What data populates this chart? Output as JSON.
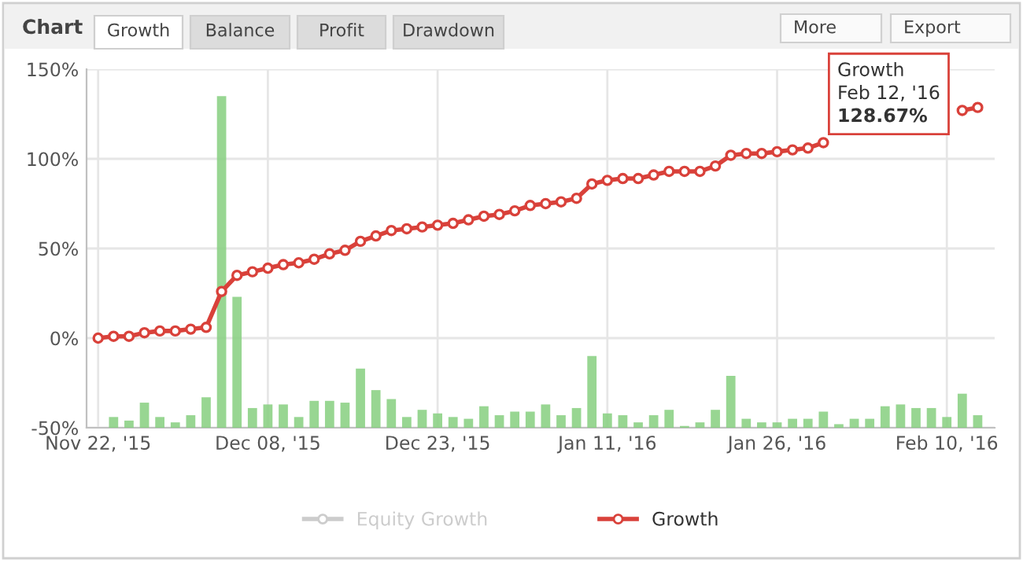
{
  "chart_data": {
    "type": "line",
    "title": "Chart",
    "categories": [
      "Nov 22, '15",
      null,
      null,
      null,
      null,
      null,
      null,
      null,
      null,
      null,
      null,
      "Dec 08, '15",
      null,
      null,
      null,
      null,
      null,
      null,
      null,
      null,
      null,
      null,
      "Dec 23, '15",
      null,
      null,
      null,
      null,
      null,
      null,
      null,
      null,
      null,
      null,
      "Jan 11, '16",
      null,
      null,
      null,
      null,
      null,
      null,
      null,
      null,
      null,
      null,
      "Jan 26, '16",
      null,
      null,
      null,
      null,
      null,
      null,
      null,
      null,
      null,
      null,
      "Feb 10, '16",
      null,
      null
    ],
    "series": [
      {
        "type": "bar",
        "color": "#86cf7f",
        "base": [
          null,
          -50,
          -50,
          -50,
          -50,
          -50,
          -50,
          -50,
          -50,
          -50,
          -50,
          -50,
          -50,
          -50,
          -50,
          -50,
          -50,
          -50,
          -50,
          -50,
          -50,
          -50,
          -50,
          -50,
          -50,
          -50,
          -50,
          -50,
          -50,
          -50,
          -50,
          -50,
          -50,
          -50,
          -50,
          -50,
          -50,
          -50,
          -50,
          -50,
          -50,
          -50,
          -50,
          -50,
          -50,
          -50,
          -50,
          -50,
          -50,
          -50,
          -50,
          -50,
          -50,
          -50,
          -50,
          -50,
          -50,
          -50
        ],
        "values": [
          null,
          6,
          4,
          14,
          6,
          3,
          7,
          17,
          185,
          73,
          11,
          13,
          13,
          6,
          15,
          15,
          14,
          33,
          21,
          16,
          6,
          10,
          8,
          6,
          5,
          12,
          7,
          9,
          9,
          13,
          7,
          11,
          40,
          8,
          7,
          3,
          7,
          10,
          1,
          3,
          10,
          29,
          5,
          3,
          3,
          5,
          5,
          9,
          2,
          5,
          5,
          12,
          13,
          11,
          11,
          6,
          19,
          7
        ]
      },
      {
        "name": "Equity Growth",
        "color": "#cccccc",
        "values": [
          null,
          null,
          null,
          null,
          null,
          null,
          null,
          null,
          null,
          null,
          null,
          null,
          null,
          null,
          null,
          null,
          null,
          null,
          null,
          null,
          null,
          null,
          null,
          null,
          null,
          null,
          null,
          null,
          null,
          null,
          null,
          null,
          null,
          null,
          null,
          null,
          null,
          null,
          null,
          null,
          null,
          null,
          null,
          null,
          null,
          null,
          null,
          null,
          null,
          null,
          null,
          null,
          null,
          null,
          null,
          null,
          null,
          null
        ]
      },
      {
        "name": "Growth",
        "color": "#d9413a",
        "values": [
          0,
          1,
          1,
          3,
          4,
          4,
          5,
          6,
          26,
          35,
          37,
          39,
          41,
          42,
          44,
          47,
          49,
          54,
          57,
          60,
          61,
          62,
          63,
          64,
          66,
          68,
          69,
          71,
          74,
          75,
          76,
          78,
          86,
          88,
          89,
          89,
          91,
          93,
          93,
          93,
          96,
          102,
          103,
          103,
          104,
          105,
          106,
          109,
          null,
          null,
          null,
          null,
          null,
          null,
          null,
          null,
          127,
          128.67
        ]
      }
    ],
    "ylim": [
      -50,
      150
    ],
    "yticks": [
      {
        "value": -50,
        "label": "-50%"
      },
      {
        "value": 0,
        "label": "0%"
      },
      {
        "value": 50,
        "label": "50%"
      },
      {
        "value": 100,
        "label": "100%"
      },
      {
        "value": 150,
        "label": "150%"
      }
    ],
    "grid": true,
    "legend": "bottom",
    "marker": "circle",
    "line_style": "solid",
    "annotations": [
      "Growth",
      "Balance",
      "Profit",
      "Drawdown",
      "More",
      "Export",
      "Growth\nFeb 12, '16\n128.67%"
    ]
  }
}
